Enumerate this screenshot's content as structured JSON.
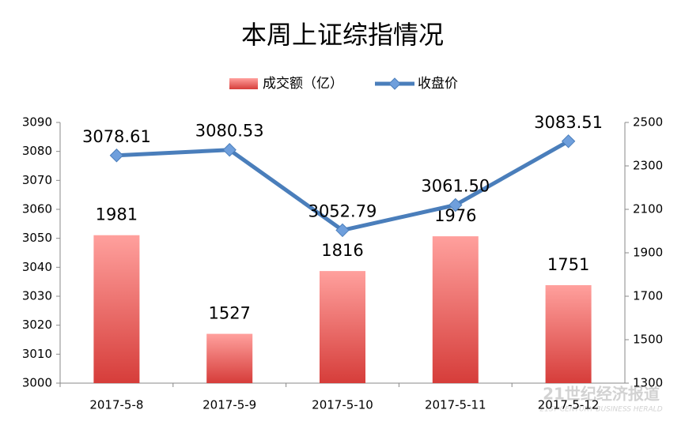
{
  "chart_data": {
    "type": "combo",
    "title": "本周上证综指情况",
    "categories": [
      "2017-5-8",
      "2017-5-9",
      "2017-5-10",
      "2017-5-11",
      "2017-5-12"
    ],
    "series": [
      {
        "name": "成交额（亿）",
        "type": "bar",
        "axis": "y2",
        "color": "#e0504c",
        "values": [
          1981,
          1527,
          1816,
          1976,
          1751
        ]
      },
      {
        "name": "收盘价",
        "type": "line",
        "color": "#4a7ebb",
        "values": [
          3078.61,
          3080.53,
          3052.79,
          3061.5,
          3083.51
        ],
        "value_labels": [
          "3078.61",
          "3080.53",
          "3052.79",
          "3061.50",
          "3083.51"
        ]
      }
    ],
    "ylim": [
      3000,
      3090
    ],
    "yticks": [
      3000,
      3010,
      3020,
      3030,
      3040,
      3050,
      3060,
      3070,
      3080,
      3090
    ],
    "y2lim": [
      1300,
      2500
    ],
    "y2ticks": [
      1300,
      1500,
      1700,
      1900,
      2100,
      2300,
      2500
    ],
    "grid": false,
    "legend": "top",
    "watermark": "21世纪经济报道",
    "watermark_subtitle": "21ST CENTURY BUSINESS HERALD"
  }
}
